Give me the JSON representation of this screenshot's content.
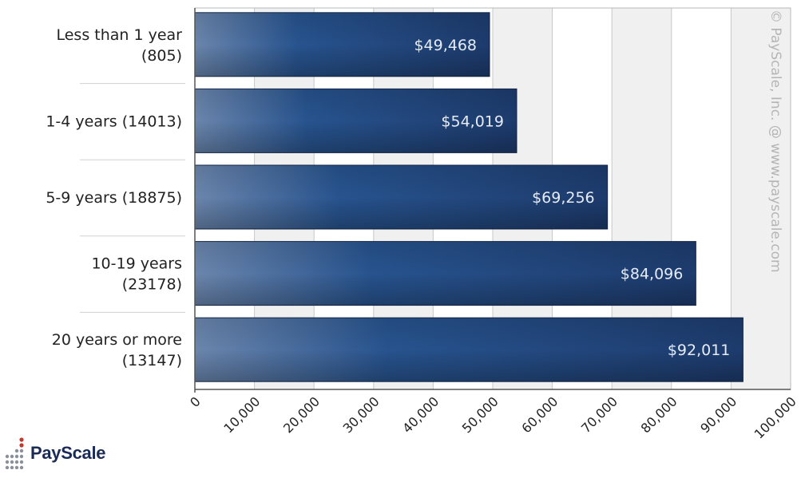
{
  "chart_data": {
    "type": "bar",
    "orientation": "horizontal",
    "categories": [
      [
        "Less than 1 year",
        "(805)"
      ],
      [
        "1-4 years (14013)"
      ],
      [
        "5-9 years (18875)"
      ],
      [
        "10-19 years",
        "(23178)"
      ],
      [
        "20 years or more",
        "(13147)"
      ]
    ],
    "values": [
      49468,
      54019,
      69256,
      84096,
      92011
    ],
    "value_labels": [
      "$49,468",
      "$54,019",
      "$69,256",
      "$84,096",
      "$92,011"
    ],
    "x_ticks": [
      "0",
      "10,000",
      "20,000",
      "30,000",
      "40,000",
      "50,000",
      "60,000",
      "70,000",
      "80,000",
      "90,000",
      "100,000"
    ],
    "xlim": [
      0,
      100000
    ],
    "grid": true,
    "watermark": "© PayScale, Inc. @ www.payscale.com",
    "colors": {
      "bar_dark": "#1c3765",
      "bar_mid": "#27538e",
      "bar_light": "#6b86ad",
      "grid_band": "#f0f0f0"
    }
  },
  "brand": {
    "name": "PayScale",
    "logo_icon": "payscale-dots-icon"
  }
}
